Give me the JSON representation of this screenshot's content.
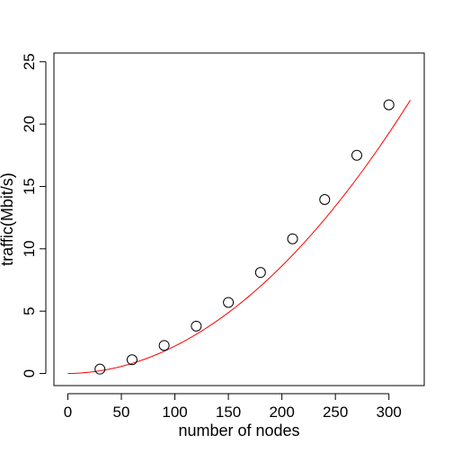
{
  "chart_data": {
    "type": "scatter",
    "title": "",
    "xlabel": "number of nodes",
    "ylabel": "traffic(Mbit/s)",
    "xlim": [
      -13,
      333
    ],
    "ylim": [
      -0.97,
      25.7
    ],
    "x_ticks": [
      0,
      50,
      100,
      150,
      200,
      250,
      300
    ],
    "y_ticks": [
      0,
      5,
      10,
      15,
      20,
      25
    ],
    "grid": false,
    "legend": "none",
    "series": [
      {
        "kind": "points",
        "marker": "open-circle",
        "color": "#000000",
        "x": [
          30,
          60,
          90,
          120,
          150,
          180,
          210,
          240,
          270,
          300
        ],
        "y": [
          0.35,
          1.1,
          2.25,
          3.8,
          5.7,
          8.1,
          10.8,
          13.95,
          17.5,
          21.55
        ]
      },
      {
        "kind": "fit-curve",
        "color": "#ff0000",
        "x_range": [
          0,
          320
        ],
        "coefficients": [
          0,
          0.00082,
          0.0002115
        ]
      }
    ]
  }
}
